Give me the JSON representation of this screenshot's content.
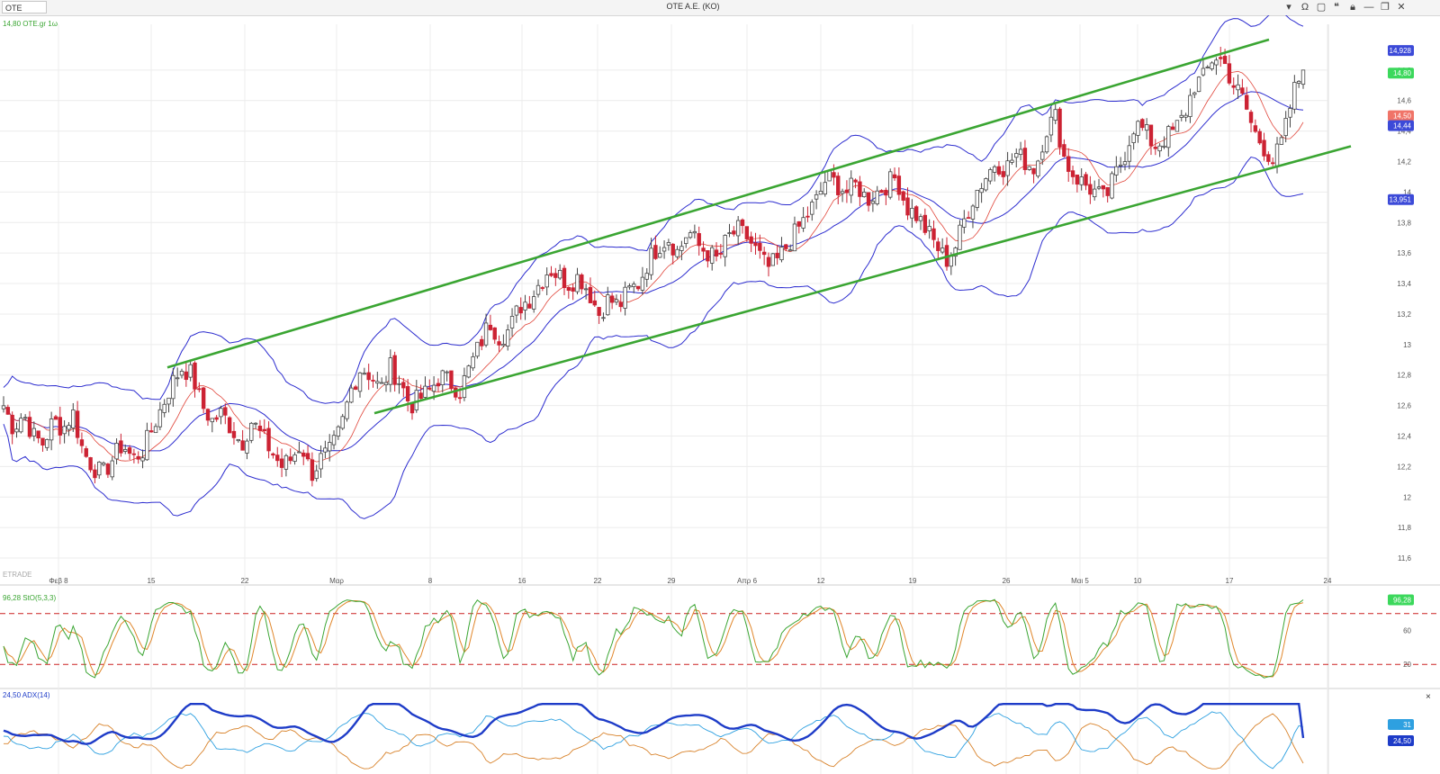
{
  "window": {
    "symbol_input": "OTE",
    "title": "OTE A.E. (KO)",
    "icons": [
      "dropdown-icon",
      "omega-icon",
      "window-icon",
      "quote-icon",
      "lock-icon",
      "minimize-icon",
      "restore-icon",
      "close-icon"
    ]
  },
  "panes": {
    "price": {
      "legend": "14,80 OTE.gr 1ω",
      "watermark": "ETRADE"
    },
    "stoch": {
      "legend": "96,28 StO(5,3,3)"
    },
    "adx": {
      "legend": "24,50 ADX(14)",
      "close_glyph": "×"
    }
  },
  "x_axis": {
    "labels": [
      "Φεβ 8",
      "15",
      "22",
      "Μαρ",
      "8",
      "16",
      "22",
      "29",
      "Απρ 6",
      "12",
      "19",
      "26",
      "Μαι 5",
      "10",
      "17",
      "24"
    ]
  },
  "y_axis": {
    "price_ticks": [
      "14,8",
      "14,6",
      "14,4",
      "14,2",
      "14",
      "13,8",
      "13,6",
      "13,4",
      "13,2",
      "13",
      "12,8",
      "12,6",
      "12,4",
      "12,2",
      "12",
      "11,8",
      "11,6"
    ],
    "stoch_ticks": [
      "60",
      "20"
    ],
    "price_badges": {
      "bb_upper": "14,928",
      "last": "14,80",
      "sma": "14,50",
      "bb_middle": "14,44",
      "bb_lower": "13,951"
    },
    "stoch_badge": "96,28",
    "adx_badges": {
      "di": "31",
      "adx": "24,50"
    }
  },
  "colors": {
    "background": "#ffffff",
    "grid": "#ececec",
    "up": "#444444",
    "down": "#cc2233",
    "bollinger": "#2d2dcf",
    "sma": "#e0453a",
    "trend_channel": "#3aa532",
    "stoch_k": "#3aa532",
    "stoch_d": "#e0862a",
    "stoch_band": "#cc2222",
    "adx_line": "#1e3cc8",
    "di_plus": "#2ea0e0",
    "di_minus": "#d8822a",
    "badge_green": "#3cd85c",
    "badge_blue": "#3c4ad8",
    "badge_red": "#f07468"
  },
  "chart_data": {
    "type": "candlestick",
    "symbol": "OTE.gr",
    "interval": "1ω",
    "ylim": [
      11.5,
      15.1
    ],
    "last_close": 14.8,
    "indicators": {
      "bollinger": {
        "upper": 14.928,
        "middle": 14.44,
        "lower": 13.951
      },
      "sma": 14.5,
      "stochastic": {
        "params": "5,3,3",
        "value": 96.28,
        "levels": [
          80,
          20
        ]
      },
      "adx": {
        "period": 14,
        "value": 24.5,
        "di": 31
      }
    },
    "trend_channel": {
      "upper": [
        [
          "15",
          12.85
        ],
        [
          "17",
          15.0
        ]
      ],
      "lower": [
        [
          "8",
          12.55
        ],
        [
          "24",
          14.3
        ]
      ]
    },
    "path": [
      12.6,
      12.45,
      12.55,
      12.4,
      12.35,
      12.5,
      12.45,
      12.55,
      12.3,
      12.2,
      12.15,
      12.25,
      12.35,
      12.25,
      12.3,
      12.45,
      12.6,
      12.75,
      12.85,
      12.8,
      12.6,
      12.5,
      12.55,
      12.45,
      12.35,
      12.5,
      12.4,
      12.3,
      12.2,
      12.25,
      12.35,
      12.15,
      12.25,
      12.3,
      12.45,
      12.7,
      12.85,
      12.8,
      12.7,
      12.85,
      12.75,
      12.6,
      12.65,
      12.7,
      12.8,
      12.75,
      12.7,
      12.85,
      13.0,
      13.15,
      13.05,
      13.1,
      13.25,
      13.3,
      13.4,
      13.5,
      13.45,
      13.4,
      13.45,
      13.35,
      13.2,
      13.3,
      13.25,
      13.35,
      13.4,
      13.55,
      13.65,
      13.7,
      13.6,
      13.75,
      13.65,
      13.6,
      13.55,
      13.7,
      13.75,
      13.7,
      13.6,
      13.5,
      13.55,
      13.65,
      13.75,
      13.85,
      13.95,
      14.1,
      14.05,
      14.0,
      14.05,
      13.95,
      14.0,
      14.05,
      14.1,
      13.9,
      13.85,
      13.75,
      13.65,
      13.55,
      13.65,
      13.85,
      14.0,
      14.1,
      14.2,
      14.15,
      14.25,
      14.2,
      14.15,
      14.4,
      14.5,
      14.2,
      14.1,
      14.05,
      14.0,
      13.95,
      14.1,
      14.25,
      14.45,
      14.4,
      14.3,
      14.35,
      14.4,
      14.5,
      14.7,
      14.75,
      14.9,
      14.85,
      14.7,
      14.6,
      14.4,
      14.3,
      14.2,
      14.35,
      14.65,
      14.8
    ]
  }
}
